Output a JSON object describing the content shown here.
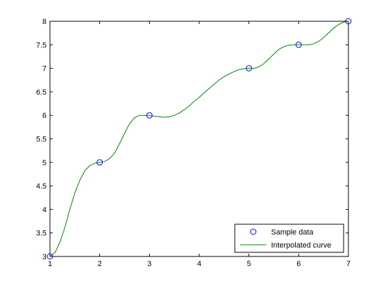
{
  "chart_data": {
    "type": "line",
    "title": "",
    "xlabel": "",
    "ylabel": "",
    "xlim": [
      1,
      7
    ],
    "ylim": [
      3,
      8
    ],
    "xticks": [
      "1",
      "2",
      "3",
      "4",
      "5",
      "6",
      "7"
    ],
    "yticks": [
      "3",
      "3.5",
      "4",
      "4.5",
      "5",
      "5.5",
      "6",
      "6.5",
      "7",
      "7.5",
      "8"
    ],
    "grid": false,
    "legend_position": "bottom-right",
    "series": [
      {
        "name": "Sample data",
        "kind": "markers",
        "marker": "circle",
        "color": "#0000ff",
        "x": [
          1,
          2,
          3,
          5,
          6,
          7
        ],
        "y": [
          3,
          5,
          6,
          7,
          7.5,
          8
        ]
      },
      {
        "name": "Interpolated curve",
        "kind": "line",
        "color": "#008000",
        "x": [
          1,
          1.1,
          1.2,
          1.3,
          1.4,
          1.5,
          1.6,
          1.7,
          1.8,
          1.9,
          2,
          2.1,
          2.2,
          2.3,
          2.4,
          2.5,
          2.6,
          2.7,
          2.8,
          2.9,
          3,
          3.1,
          3.2,
          3.3,
          3.4,
          3.5,
          3.6,
          3.7,
          3.8,
          3.9,
          4,
          4.1,
          4.2,
          4.3,
          4.4,
          4.5,
          4.6,
          4.7,
          4.8,
          4.9,
          5,
          5.1,
          5.2,
          5.3,
          5.4,
          5.5,
          5.6,
          5.7,
          5.8,
          5.9,
          6,
          6.1,
          6.2,
          6.3,
          6.4,
          6.5,
          6.6,
          6.7,
          6.8,
          6.9,
          7
        ],
        "y": [
          3,
          3.08,
          3.3,
          3.62,
          4.0,
          4.35,
          4.62,
          4.82,
          4.93,
          4.98,
          5,
          5.02,
          5.08,
          5.2,
          5.4,
          5.62,
          5.82,
          5.95,
          6.0,
          6.0,
          6,
          5.98,
          5.97,
          5.96,
          5.97,
          6.0,
          6.05,
          6.12,
          6.2,
          6.3,
          6.38,
          6.48,
          6.57,
          6.66,
          6.75,
          6.82,
          6.88,
          6.93,
          6.97,
          6.99,
          7,
          7.0,
          7.03,
          7.1,
          7.2,
          7.3,
          7.4,
          7.46,
          7.49,
          7.5,
          7.5,
          7.5,
          7.5,
          7.52,
          7.57,
          7.65,
          7.75,
          7.85,
          7.93,
          7.98,
          8
        ]
      }
    ]
  }
}
